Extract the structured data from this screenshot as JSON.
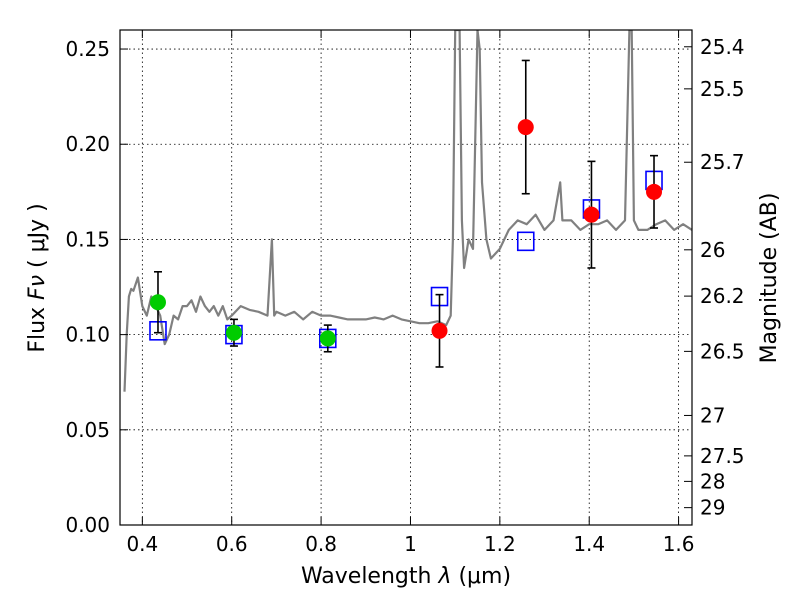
{
  "chart_data": {
    "type": "scatter",
    "xlabel_prefix": "Wavelength ",
    "xlabel_symbol": "λ",
    "xlabel_unit": "(μm)",
    "ylabel_prefix": "Flux ",
    "ylabel_symbol": "Fν",
    "ylabel_unit": "( μJy )",
    "y2label": "Magnitude (AB)",
    "xlim": [
      0.35,
      1.63
    ],
    "ylim": [
      0.0,
      0.26
    ],
    "grid": true,
    "x_ticks": [
      {
        "v": 0.4,
        "label": "0.4"
      },
      {
        "v": 0.6,
        "label": "0.6"
      },
      {
        "v": 0.8,
        "label": "0.8"
      },
      {
        "v": 1.0,
        "label": "1"
      },
      {
        "v": 1.2,
        "label": "1.2"
      },
      {
        "v": 1.4,
        "label": "1.4"
      },
      {
        "v": 1.6,
        "label": "1.6"
      }
    ],
    "y_ticks": [
      {
        "v": 0.0,
        "label": "0.00"
      },
      {
        "v": 0.05,
        "label": "0.05"
      },
      {
        "v": 0.1,
        "label": "0.10"
      },
      {
        "v": 0.15,
        "label": "0.15"
      },
      {
        "v": 0.2,
        "label": "0.20"
      },
      {
        "v": 0.25,
        "label": "0.25"
      }
    ],
    "y2_ticks": [
      {
        "mag": 25.4,
        "label": "25.4"
      },
      {
        "mag": 25.5,
        "label": "25.5"
      },
      {
        "mag": 25.7,
        "label": "25.7"
      },
      {
        "mag": 26.0,
        "label": "26"
      },
      {
        "mag": 26.2,
        "label": "26.2"
      },
      {
        "mag": 26.5,
        "label": "26.5"
      },
      {
        "mag": 27.0,
        "label": "27"
      },
      {
        "mag": 27.5,
        "label": "27.5"
      },
      {
        "mag": 28.0,
        "label": "28"
      },
      {
        "mag": 29.0,
        "label": "29"
      }
    ],
    "series": [
      {
        "type": "line",
        "color": "#808080",
        "x": [
          0.36,
          0.365,
          0.37,
          0.375,
          0.38,
          0.39,
          0.4,
          0.41,
          0.42,
          0.43,
          0.44,
          0.45,
          0.46,
          0.47,
          0.48,
          0.49,
          0.5,
          0.51,
          0.52,
          0.53,
          0.54,
          0.55,
          0.56,
          0.57,
          0.58,
          0.59,
          0.6,
          0.62,
          0.64,
          0.66,
          0.68,
          0.69,
          0.695,
          0.7,
          0.72,
          0.74,
          0.76,
          0.78,
          0.8,
          0.82,
          0.84,
          0.86,
          0.88,
          0.9,
          0.92,
          0.94,
          0.96,
          0.98,
          1.0,
          1.02,
          1.04,
          1.06,
          1.08,
          1.09,
          1.095,
          1.1,
          1.11,
          1.115,
          1.12,
          1.13,
          1.14,
          1.15,
          1.155,
          1.16,
          1.17,
          1.18,
          1.2,
          1.22,
          1.24,
          1.26,
          1.28,
          1.3,
          1.32,
          1.335,
          1.34,
          1.36,
          1.38,
          1.4,
          1.42,
          1.44,
          1.46,
          1.48,
          1.49,
          1.495,
          1.5,
          1.51,
          1.53,
          1.55,
          1.57,
          1.59,
          1.61,
          1.63
        ],
        "y": [
          0.07,
          0.1,
          0.12,
          0.124,
          0.123,
          0.13,
          0.115,
          0.11,
          0.12,
          0.115,
          0.11,
          0.095,
          0.1,
          0.11,
          0.108,
          0.115,
          0.115,
          0.118,
          0.112,
          0.12,
          0.115,
          0.112,
          0.115,
          0.11,
          0.115,
          0.108,
          0.11,
          0.115,
          0.113,
          0.112,
          0.11,
          0.15,
          0.11,
          0.112,
          0.11,
          0.112,
          0.108,
          0.112,
          0.11,
          0.11,
          0.109,
          0.108,
          0.108,
          0.108,
          0.109,
          0.108,
          0.11,
          0.108,
          0.107,
          0.106,
          0.106,
          0.107,
          0.105,
          0.11,
          0.15,
          0.26,
          0.26,
          0.16,
          0.135,
          0.15,
          0.145,
          0.26,
          0.25,
          0.18,
          0.15,
          0.14,
          0.145,
          0.155,
          0.16,
          0.158,
          0.163,
          0.155,
          0.16,
          0.18,
          0.16,
          0.16,
          0.155,
          0.158,
          0.158,
          0.16,
          0.155,
          0.16,
          0.26,
          0.26,
          0.16,
          0.155,
          0.155,
          0.158,
          0.16,
          0.155,
          0.158,
          0.155
        ]
      },
      {
        "type": "scatter",
        "marker": "square-open",
        "color": "#0000ff",
        "points": [
          [
            0.435,
            0.102
          ],
          [
            0.605,
            0.1
          ],
          [
            0.815,
            0.098
          ],
          [
            1.065,
            0.12
          ],
          [
            1.258,
            0.149
          ],
          [
            1.405,
            0.166
          ],
          [
            1.545,
            0.181
          ]
        ]
      },
      {
        "type": "scatter",
        "marker": "circle",
        "color": "#00cc00",
        "points": [
          {
            "x": 0.435,
            "y": 0.117,
            "err": 0.016
          },
          {
            "x": 0.605,
            "y": 0.101,
            "err": 0.007
          },
          {
            "x": 0.815,
            "y": 0.098,
            "err": 0.007
          }
        ]
      },
      {
        "type": "scatter",
        "marker": "circle",
        "color": "#ff0000",
        "points": [
          {
            "x": 1.065,
            "y": 0.102,
            "err": 0.019
          },
          {
            "x": 1.258,
            "y": 0.209,
            "err": 0.035
          },
          {
            "x": 1.405,
            "y": 0.163,
            "err": 0.028
          },
          {
            "x": 1.545,
            "y": 0.175,
            "err": 0.019
          }
        ]
      }
    ]
  }
}
